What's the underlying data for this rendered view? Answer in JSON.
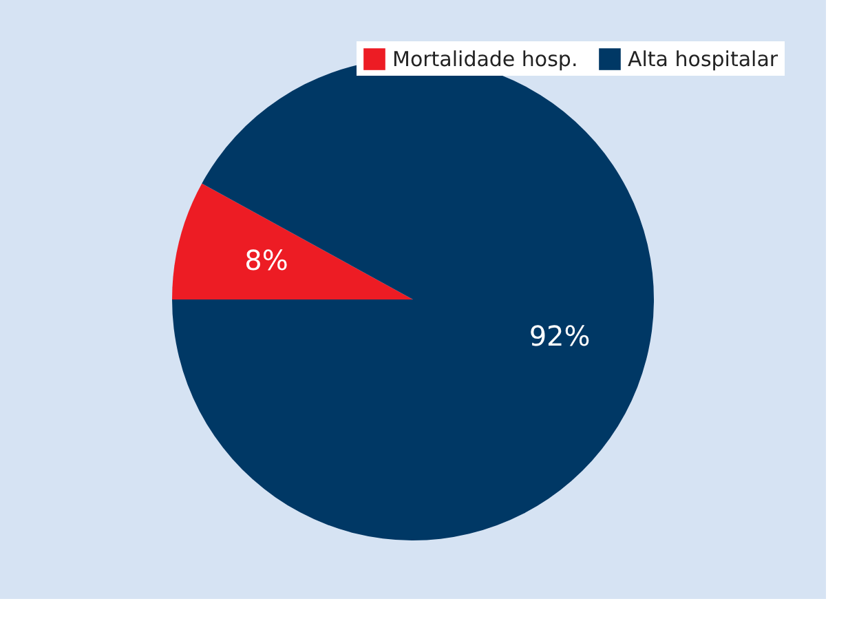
{
  "chart_data": {
    "type": "pie",
    "categories": [
      "Mortalidade hosp.",
      "Alta hospitalar"
    ],
    "values": [
      8,
      92
    ],
    "colors": [
      "#ed1c24",
      "#003865"
    ],
    "value_labels": [
      "8%",
      "92%"
    ],
    "legend": "top right"
  }
}
